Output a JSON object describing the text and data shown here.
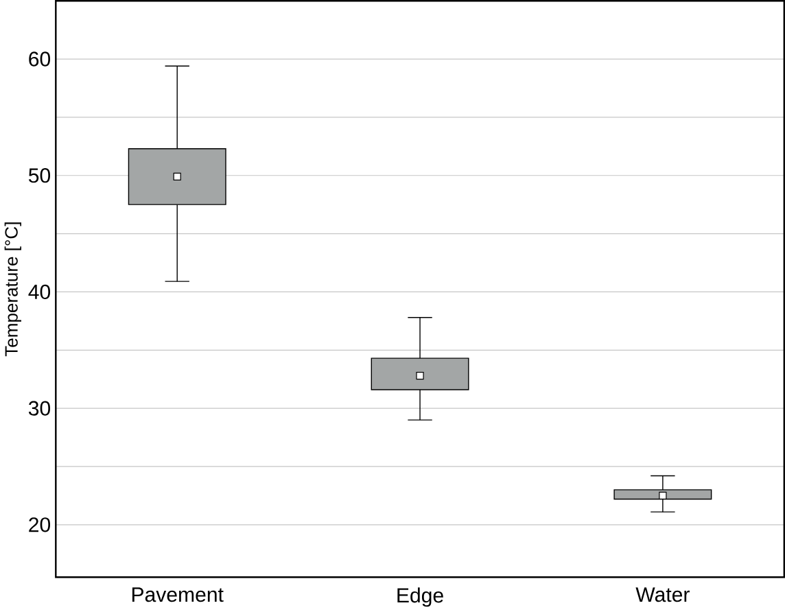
{
  "chart_data": {
    "type": "box",
    "ylabel": "Temperature [°C]",
    "categories": [
      "Pavement",
      "Edge",
      "Water"
    ],
    "boxes": [
      {
        "low": 40.9,
        "q1": 47.5,
        "median": 49.9,
        "q3": 52.3,
        "high": 59.4
      },
      {
        "low": 29.0,
        "q1": 31.6,
        "median": 32.8,
        "q3": 34.3,
        "high": 37.8
      },
      {
        "low": 21.1,
        "q1": 22.2,
        "median": 22.5,
        "q3": 23.0,
        "high": 24.2
      }
    ],
    "color": "#a3a6a6",
    "ylim": [
      15.5,
      65
    ],
    "yticks": [
      20,
      {
        "value": 25,
        "label": null
      },
      30,
      {
        "value": 35,
        "label": null
      },
      40,
      {
        "value": 45,
        "label": null
      },
      50,
      {
        "value": 55,
        "label": null
      },
      60
    ],
    "grid": "y"
  }
}
